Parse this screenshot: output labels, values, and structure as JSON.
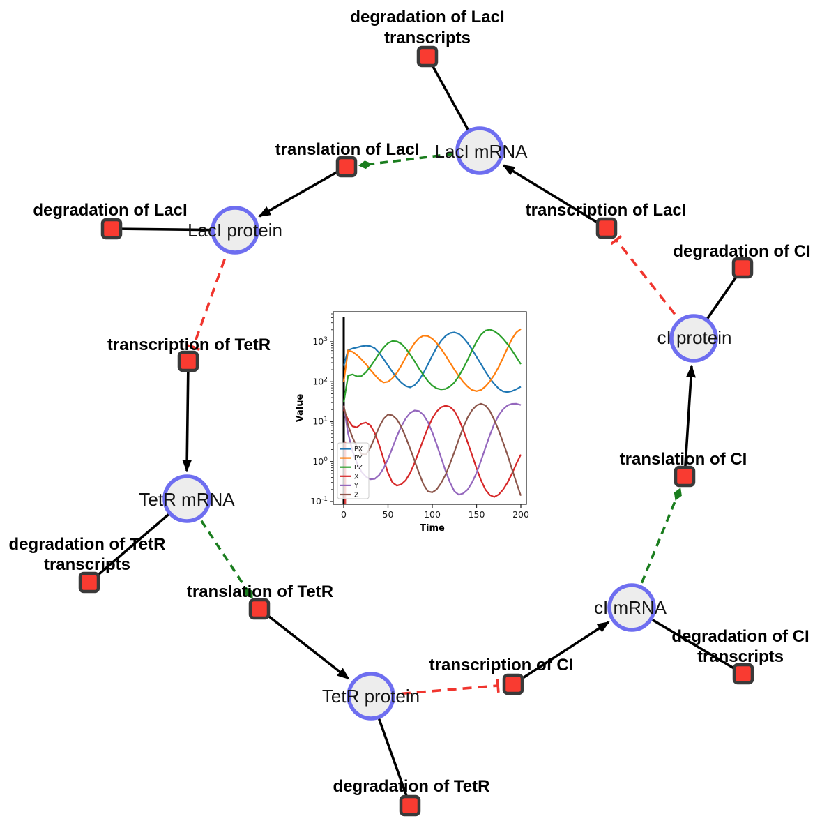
{
  "network": {
    "species": [
      {
        "id": "laci-mrna",
        "label": "LacI mRNA"
      },
      {
        "id": "laci-protein",
        "label": "LacI protein"
      },
      {
        "id": "ci-protein",
        "label": "cI protein"
      },
      {
        "id": "tetr-mrna",
        "label": "TetR mRNA"
      },
      {
        "id": "ci-mrna",
        "label": "cI mRNA"
      },
      {
        "id": "tetr-protein",
        "label": "TetR protein"
      }
    ],
    "reactions": [
      {
        "id": "degradation-of-laci-transcripts",
        "label_lines": [
          "degradation of LacI",
          "transcripts"
        ]
      },
      {
        "id": "translation-of-laci",
        "label_lines": [
          "translation of LacI"
        ]
      },
      {
        "id": "degradation-of-laci",
        "label_lines": [
          "degradation of LacI"
        ]
      },
      {
        "id": "transcription-of-laci",
        "label_lines": [
          "transcription of LacI"
        ]
      },
      {
        "id": "degradation-of-ci",
        "label_lines": [
          "degradation of CI"
        ]
      },
      {
        "id": "transcription-of-tetr",
        "label_lines": [
          "transcription of TetR"
        ]
      },
      {
        "id": "translation-of-ci",
        "label_lines": [
          "translation of CI"
        ]
      },
      {
        "id": "degradation-of-tetr-transcripts",
        "label_lines": [
          "degradation of TetR",
          "transcripts"
        ]
      },
      {
        "id": "translation-of-tetr",
        "label_lines": [
          "translation of TetR"
        ]
      },
      {
        "id": "transcription-of-ci",
        "label_lines": [
          "transcription of CI"
        ]
      },
      {
        "id": "degradation-of-ci-transcripts",
        "label_lines": [
          "degradation of CI",
          "transcripts"
        ]
      },
      {
        "id": "degradation-of-tetr",
        "label_lines": [
          "degradation of TetR"
        ]
      }
    ],
    "colors": {
      "species_fill": "#ededed",
      "species_border": "#6e6ef0",
      "reaction_fill": "#f93b31",
      "reaction_border": "#3a3a3a",
      "edge_black": "#000000",
      "edge_activation_green": "#1a7d1e",
      "edge_inhibition_red": "#f0352e"
    }
  },
  "chart_data": {
    "type": "line",
    "title": "",
    "xlabel": "Time",
    "ylabel": "Value",
    "x_ticks": [
      0,
      50,
      100,
      150,
      200
    ],
    "xlim": [
      -12,
      207
    ],
    "y_scale": "log",
    "y_tick_exponents": [
      -1,
      0,
      1,
      2,
      3
    ],
    "ylim": [
      0.1,
      5500
    ],
    "grid": false,
    "legend_position": "lower left",
    "annotations": {
      "vlines": [
        {
          "x": 0,
          "color": "#d62728",
          "v_from": 0.1,
          "v_to": 3.2
        },
        {
          "x": 0,
          "color": "#000000",
          "v_from": 0.1,
          "v_to": 4200
        }
      ]
    },
    "series": [
      {
        "name": "PX",
        "color": "#1f77b4",
        "points": [
          [
            0,
            250
          ],
          [
            5,
            620
          ],
          [
            10,
            680
          ],
          [
            15,
            720
          ],
          [
            20,
            770
          ],
          [
            25,
            800
          ],
          [
            30,
            780
          ],
          [
            35,
            690
          ],
          [
            40,
            530
          ],
          [
            45,
            370
          ],
          [
            50,
            255
          ],
          [
            55,
            175
          ],
          [
            60,
            125
          ],
          [
            65,
            95
          ],
          [
            70,
            78
          ],
          [
            75,
            72
          ],
          [
            80,
            82
          ],
          [
            85,
            108
          ],
          [
            90,
            165
          ],
          [
            95,
            270
          ],
          [
            100,
            450
          ],
          [
            105,
            720
          ],
          [
            110,
            1060
          ],
          [
            115,
            1400
          ],
          [
            120,
            1650
          ],
          [
            125,
            1720
          ],
          [
            130,
            1580
          ],
          [
            135,
            1270
          ],
          [
            140,
            930
          ],
          [
            145,
            640
          ],
          [
            150,
            420
          ],
          [
            155,
            275
          ],
          [
            160,
            180
          ],
          [
            165,
            122
          ],
          [
            170,
            88
          ],
          [
            175,
            67
          ],
          [
            180,
            57
          ],
          [
            185,
            55
          ],
          [
            190,
            58
          ],
          [
            195,
            65
          ],
          [
            200,
            75
          ]
        ]
      },
      {
        "name": "PY",
        "color": "#ff7f0e",
        "points": [
          [
            0,
            100
          ],
          [
            5,
            610
          ],
          [
            10,
            560
          ],
          [
            15,
            465
          ],
          [
            20,
            365
          ],
          [
            25,
            275
          ],
          [
            30,
            200
          ],
          [
            35,
            148
          ],
          [
            40,
            112
          ],
          [
            45,
            96
          ],
          [
            50,
            100
          ],
          [
            55,
            122
          ],
          [
            60,
            168
          ],
          [
            65,
            255
          ],
          [
            70,
            405
          ],
          [
            75,
            630
          ],
          [
            80,
            930
          ],
          [
            85,
            1240
          ],
          [
            90,
            1420
          ],
          [
            95,
            1390
          ],
          [
            100,
            1200
          ],
          [
            105,
            930
          ],
          [
            110,
            660
          ],
          [
            115,
            455
          ],
          [
            120,
            300
          ],
          [
            125,
            200
          ],
          [
            130,
            138
          ],
          [
            135,
            99
          ],
          [
            140,
            75
          ],
          [
            145,
            62
          ],
          [
            150,
            58
          ],
          [
            155,
            62
          ],
          [
            160,
            76
          ],
          [
            165,
            102
          ],
          [
            170,
            148
          ],
          [
            175,
            235
          ],
          [
            180,
            400
          ],
          [
            185,
            700
          ],
          [
            190,
            1180
          ],
          [
            195,
            1720
          ],
          [
            200,
            2100
          ]
        ]
      },
      {
        "name": "PZ",
        "color": "#2ca02c",
        "points": [
          [
            0,
            30
          ],
          [
            5,
            142
          ],
          [
            10,
            152
          ],
          [
            15,
            136
          ],
          [
            20,
            138
          ],
          [
            25,
            172
          ],
          [
            30,
            238
          ],
          [
            35,
            345
          ],
          [
            40,
            510
          ],
          [
            45,
            715
          ],
          [
            50,
            925
          ],
          [
            55,
            1040
          ],
          [
            60,
            1020
          ],
          [
            65,
            890
          ],
          [
            70,
            680
          ],
          [
            75,
            480
          ],
          [
            80,
            325
          ],
          [
            85,
            215
          ],
          [
            90,
            148
          ],
          [
            95,
            104
          ],
          [
            100,
            80
          ],
          [
            105,
            68
          ],
          [
            110,
            64
          ],
          [
            115,
            66
          ],
          [
            120,
            76
          ],
          [
            125,
            96
          ],
          [
            130,
            138
          ],
          [
            135,
            215
          ],
          [
            140,
            355
          ],
          [
            145,
            610
          ],
          [
            150,
            1010
          ],
          [
            155,
            1510
          ],
          [
            160,
            1900
          ],
          [
            165,
            2010
          ],
          [
            170,
            1850
          ],
          [
            175,
            1540
          ],
          [
            180,
            1190
          ],
          [
            185,
            870
          ],
          [
            190,
            610
          ],
          [
            195,
            415
          ],
          [
            200,
            275
          ]
        ]
      },
      {
        "name": "X",
        "color": "#d62728",
        "points": [
          [
            0,
            20
          ],
          [
            5,
            11
          ],
          [
            10,
            7.6
          ],
          [
            15,
            7.2
          ],
          [
            20,
            8.9
          ],
          [
            25,
            9.5
          ],
          [
            30,
            8.1
          ],
          [
            35,
            5.2
          ],
          [
            40,
            2.6
          ],
          [
            45,
            1.15
          ],
          [
            50,
            0.52
          ],
          [
            55,
            0.3
          ],
          [
            60,
            0.25
          ],
          [
            65,
            0.27
          ],
          [
            70,
            0.34
          ],
          [
            75,
            0.52
          ],
          [
            80,
            0.92
          ],
          [
            85,
            1.8
          ],
          [
            90,
            3.6
          ],
          [
            95,
            7
          ],
          [
            100,
            12
          ],
          [
            105,
            18
          ],
          [
            110,
            23
          ],
          [
            115,
            25
          ],
          [
            120,
            23.5
          ],
          [
            125,
            18.5
          ],
          [
            130,
            11.5
          ],
          [
            135,
            6.2
          ],
          [
            140,
            3
          ],
          [
            145,
            1.45
          ],
          [
            150,
            0.68
          ],
          [
            155,
            0.34
          ],
          [
            160,
            0.2
          ],
          [
            165,
            0.145
          ],
          [
            170,
            0.13
          ],
          [
            175,
            0.15
          ],
          [
            180,
            0.2
          ],
          [
            185,
            0.3
          ],
          [
            190,
            0.5
          ],
          [
            195,
            0.88
          ],
          [
            200,
            1.5
          ]
        ]
      },
      {
        "name": "Y",
        "color": "#9467bd",
        "points": [
          [
            0,
            25
          ],
          [
            5,
            5
          ],
          [
            10,
            1.8
          ],
          [
            15,
            0.92
          ],
          [
            20,
            0.56
          ],
          [
            25,
            0.42
          ],
          [
            30,
            0.36
          ],
          [
            35,
            0.37
          ],
          [
            40,
            0.46
          ],
          [
            45,
            0.68
          ],
          [
            50,
            1.15
          ],
          [
            55,
            2.2
          ],
          [
            60,
            4.3
          ],
          [
            65,
            7.6
          ],
          [
            70,
            12
          ],
          [
            75,
            16.5
          ],
          [
            80,
            19
          ],
          [
            85,
            18.4
          ],
          [
            90,
            14.8
          ],
          [
            95,
            9.8
          ],
          [
            100,
            5.4
          ],
          [
            105,
            2.7
          ],
          [
            110,
            1.25
          ],
          [
            115,
            0.58
          ],
          [
            120,
            0.3
          ],
          [
            125,
            0.18
          ],
          [
            130,
            0.148
          ],
          [
            135,
            0.16
          ],
          [
            140,
            0.2
          ],
          [
            145,
            0.3
          ],
          [
            150,
            0.52
          ],
          [
            155,
            1.05
          ],
          [
            160,
            2.2
          ],
          [
            165,
            4.6
          ],
          [
            170,
            8.8
          ],
          [
            175,
            14.5
          ],
          [
            180,
            20.5
          ],
          [
            185,
            25.5
          ],
          [
            190,
            27.8
          ],
          [
            195,
            28
          ],
          [
            200,
            26
          ]
        ]
      },
      {
        "name": "Z",
        "color": "#8c564b",
        "points": [
          [
            0,
            25
          ],
          [
            5,
            8
          ],
          [
            10,
            4
          ],
          [
            15,
            2.3
          ],
          [
            20,
            1.55
          ],
          [
            25,
            1.5
          ],
          [
            30,
            2.2
          ],
          [
            35,
            4
          ],
          [
            40,
            7.4
          ],
          [
            45,
            11.8
          ],
          [
            50,
            15
          ],
          [
            55,
            14.4
          ],
          [
            60,
            11.4
          ],
          [
            65,
            7.4
          ],
          [
            70,
            4.1
          ],
          [
            75,
            2.1
          ],
          [
            80,
            1.05
          ],
          [
            85,
            0.52
          ],
          [
            90,
            0.27
          ],
          [
            95,
            0.18
          ],
          [
            100,
            0.17
          ],
          [
            105,
            0.2
          ],
          [
            110,
            0.29
          ],
          [
            115,
            0.47
          ],
          [
            120,
            0.88
          ],
          [
            125,
            1.75
          ],
          [
            130,
            3.6
          ],
          [
            135,
            7.2
          ],
          [
            140,
            12.8
          ],
          [
            145,
            19.5
          ],
          [
            150,
            25.5
          ],
          [
            155,
            28
          ],
          [
            160,
            25.5
          ],
          [
            165,
            18.5
          ],
          [
            170,
            11
          ],
          [
            175,
            6
          ],
          [
            180,
            3
          ],
          [
            185,
            1.45
          ],
          [
            190,
            0.65
          ],
          [
            195,
            0.3
          ],
          [
            200,
            0.14
          ]
        ]
      }
    ]
  }
}
